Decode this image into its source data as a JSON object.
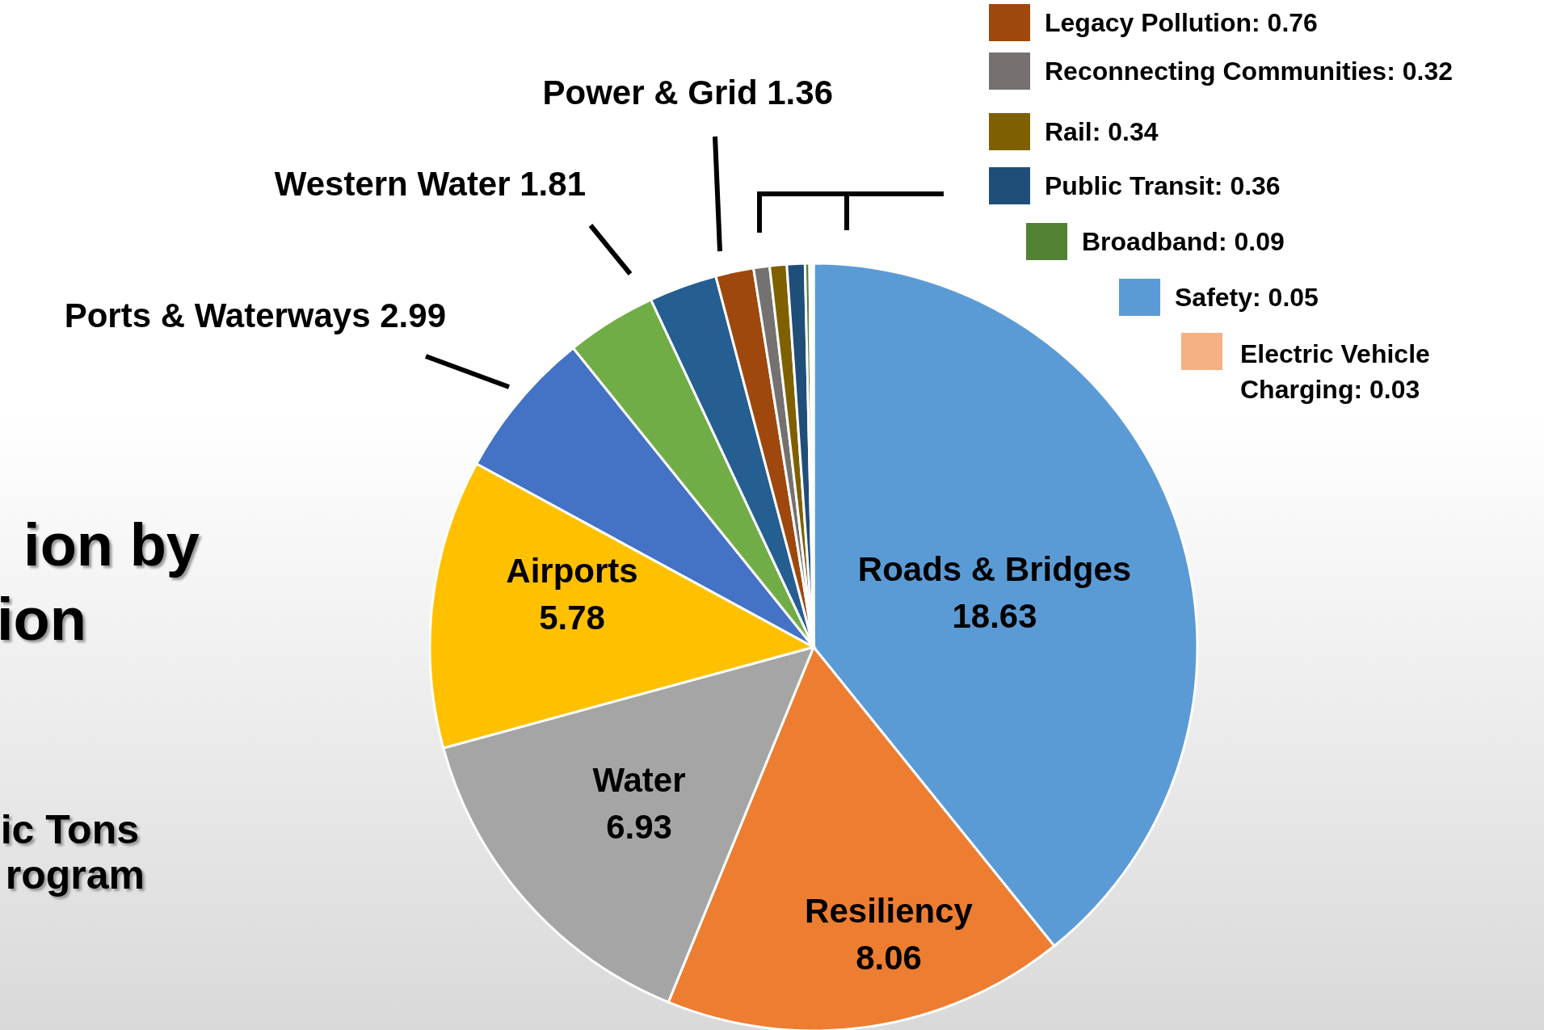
{
  "chart_data": {
    "type": "pie",
    "categories": [
      "Roads & Bridges",
      "Resiliency",
      "Water",
      "Airports",
      "Ports & Waterways",
      "Western Water",
      "Power & Grid",
      "Legacy Pollution",
      "Reconnecting Communities",
      "Rail",
      "Public Transit",
      "Broadband",
      "Safety",
      "Electric Vehicle Charging"
    ],
    "values": [
      18.63,
      8.06,
      6.93,
      5.78,
      2.99,
      1.81,
      1.36,
      0.76,
      0.32,
      0.34,
      0.36,
      0.09,
      0.05,
      0.03
    ],
    "colors": [
      "#5b9bd5",
      "#ed7d31",
      "#a5a5a5",
      "#ffc000",
      "#4472c4",
      "#70ad47",
      "#255e91",
      "#9e480e",
      "#767171",
      "#7f6000",
      "#1f4e79",
      "#548235",
      "#5b9bd5",
      "#f4b183"
    ],
    "value_labels": [
      "18.63",
      "8.06",
      "6.93",
      "5.78",
      "2.99",
      "1.81",
      "1.36",
      ": 0.76",
      ": 0.32",
      ": 0.34",
      ": 0.36",
      ": 0.09",
      ": 0.05",
      ": 0.03"
    ],
    "legend": "top right",
    "annotations": [
      "ion by",
      "ion",
      "ic Tons",
      "rogram"
    ]
  }
}
